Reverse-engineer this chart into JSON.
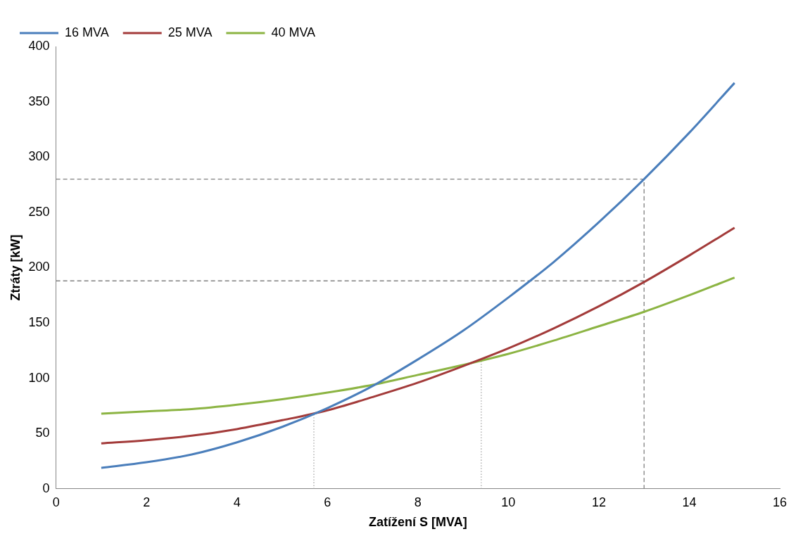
{
  "chart_data": {
    "type": "line",
    "xlabel": "Zatížení S [MVA]",
    "ylabel": "Ztráty [kW]",
    "x": [
      1,
      2,
      3,
      4,
      5,
      6,
      7,
      8,
      9,
      10,
      11,
      12,
      13,
      14,
      15
    ],
    "series": [
      {
        "name": "16 MVA",
        "color": "#4a7ebb",
        "values": [
          19,
          24,
          31,
          42,
          56,
          73,
          93,
          117,
          143,
          173,
          205,
          241,
          280,
          322,
          367
        ]
      },
      {
        "name": "25 MVA",
        "color": "#a33b3a",
        "values": [
          41,
          44,
          48,
          54,
          62,
          71,
          83,
          96,
          111,
          127,
          145,
          165,
          187,
          211,
          236
        ]
      },
      {
        "name": "40 MVA",
        "color": "#8cb443",
        "values": [
          68,
          70,
          72,
          76,
          81,
          87,
          94,
          103,
          112,
          122,
          134,
          147,
          160,
          175,
          191
        ]
      },
      {
        "type": "line",
        "color": "#7f7f7f",
        "line_style": "dashed",
        "x": [
          0,
          13,
          13
        ],
        "values": [
          280,
          280,
          0
        ]
      },
      {
        "type": "line",
        "color": "#7f7f7f",
        "line_style": "dashed",
        "x": [
          0,
          13
        ],
        "values": [
          188,
          188
        ]
      },
      {
        "type": "line",
        "color": "#a6a6a6",
        "line_style": "dotted",
        "x": [
          5.7,
          5.7
        ],
        "values": [
          0,
          68
        ]
      },
      {
        "type": "line",
        "color": "#a6a6a6",
        "line_style": "dotted",
        "x": [
          9.4,
          9.4
        ],
        "values": [
          0,
          117
        ]
      }
    ],
    "xlim": [
      0,
      16
    ],
    "xticks": [
      0,
      2,
      4,
      6,
      8,
      10,
      12,
      14,
      16
    ],
    "ylim": [
      0,
      400
    ],
    "yticks": [
      0,
      50,
      100,
      150,
      200,
      250,
      300,
      350,
      400
    ],
    "grid": false,
    "legend": "top left",
    "marker": "none",
    "line_style": "solid"
  }
}
